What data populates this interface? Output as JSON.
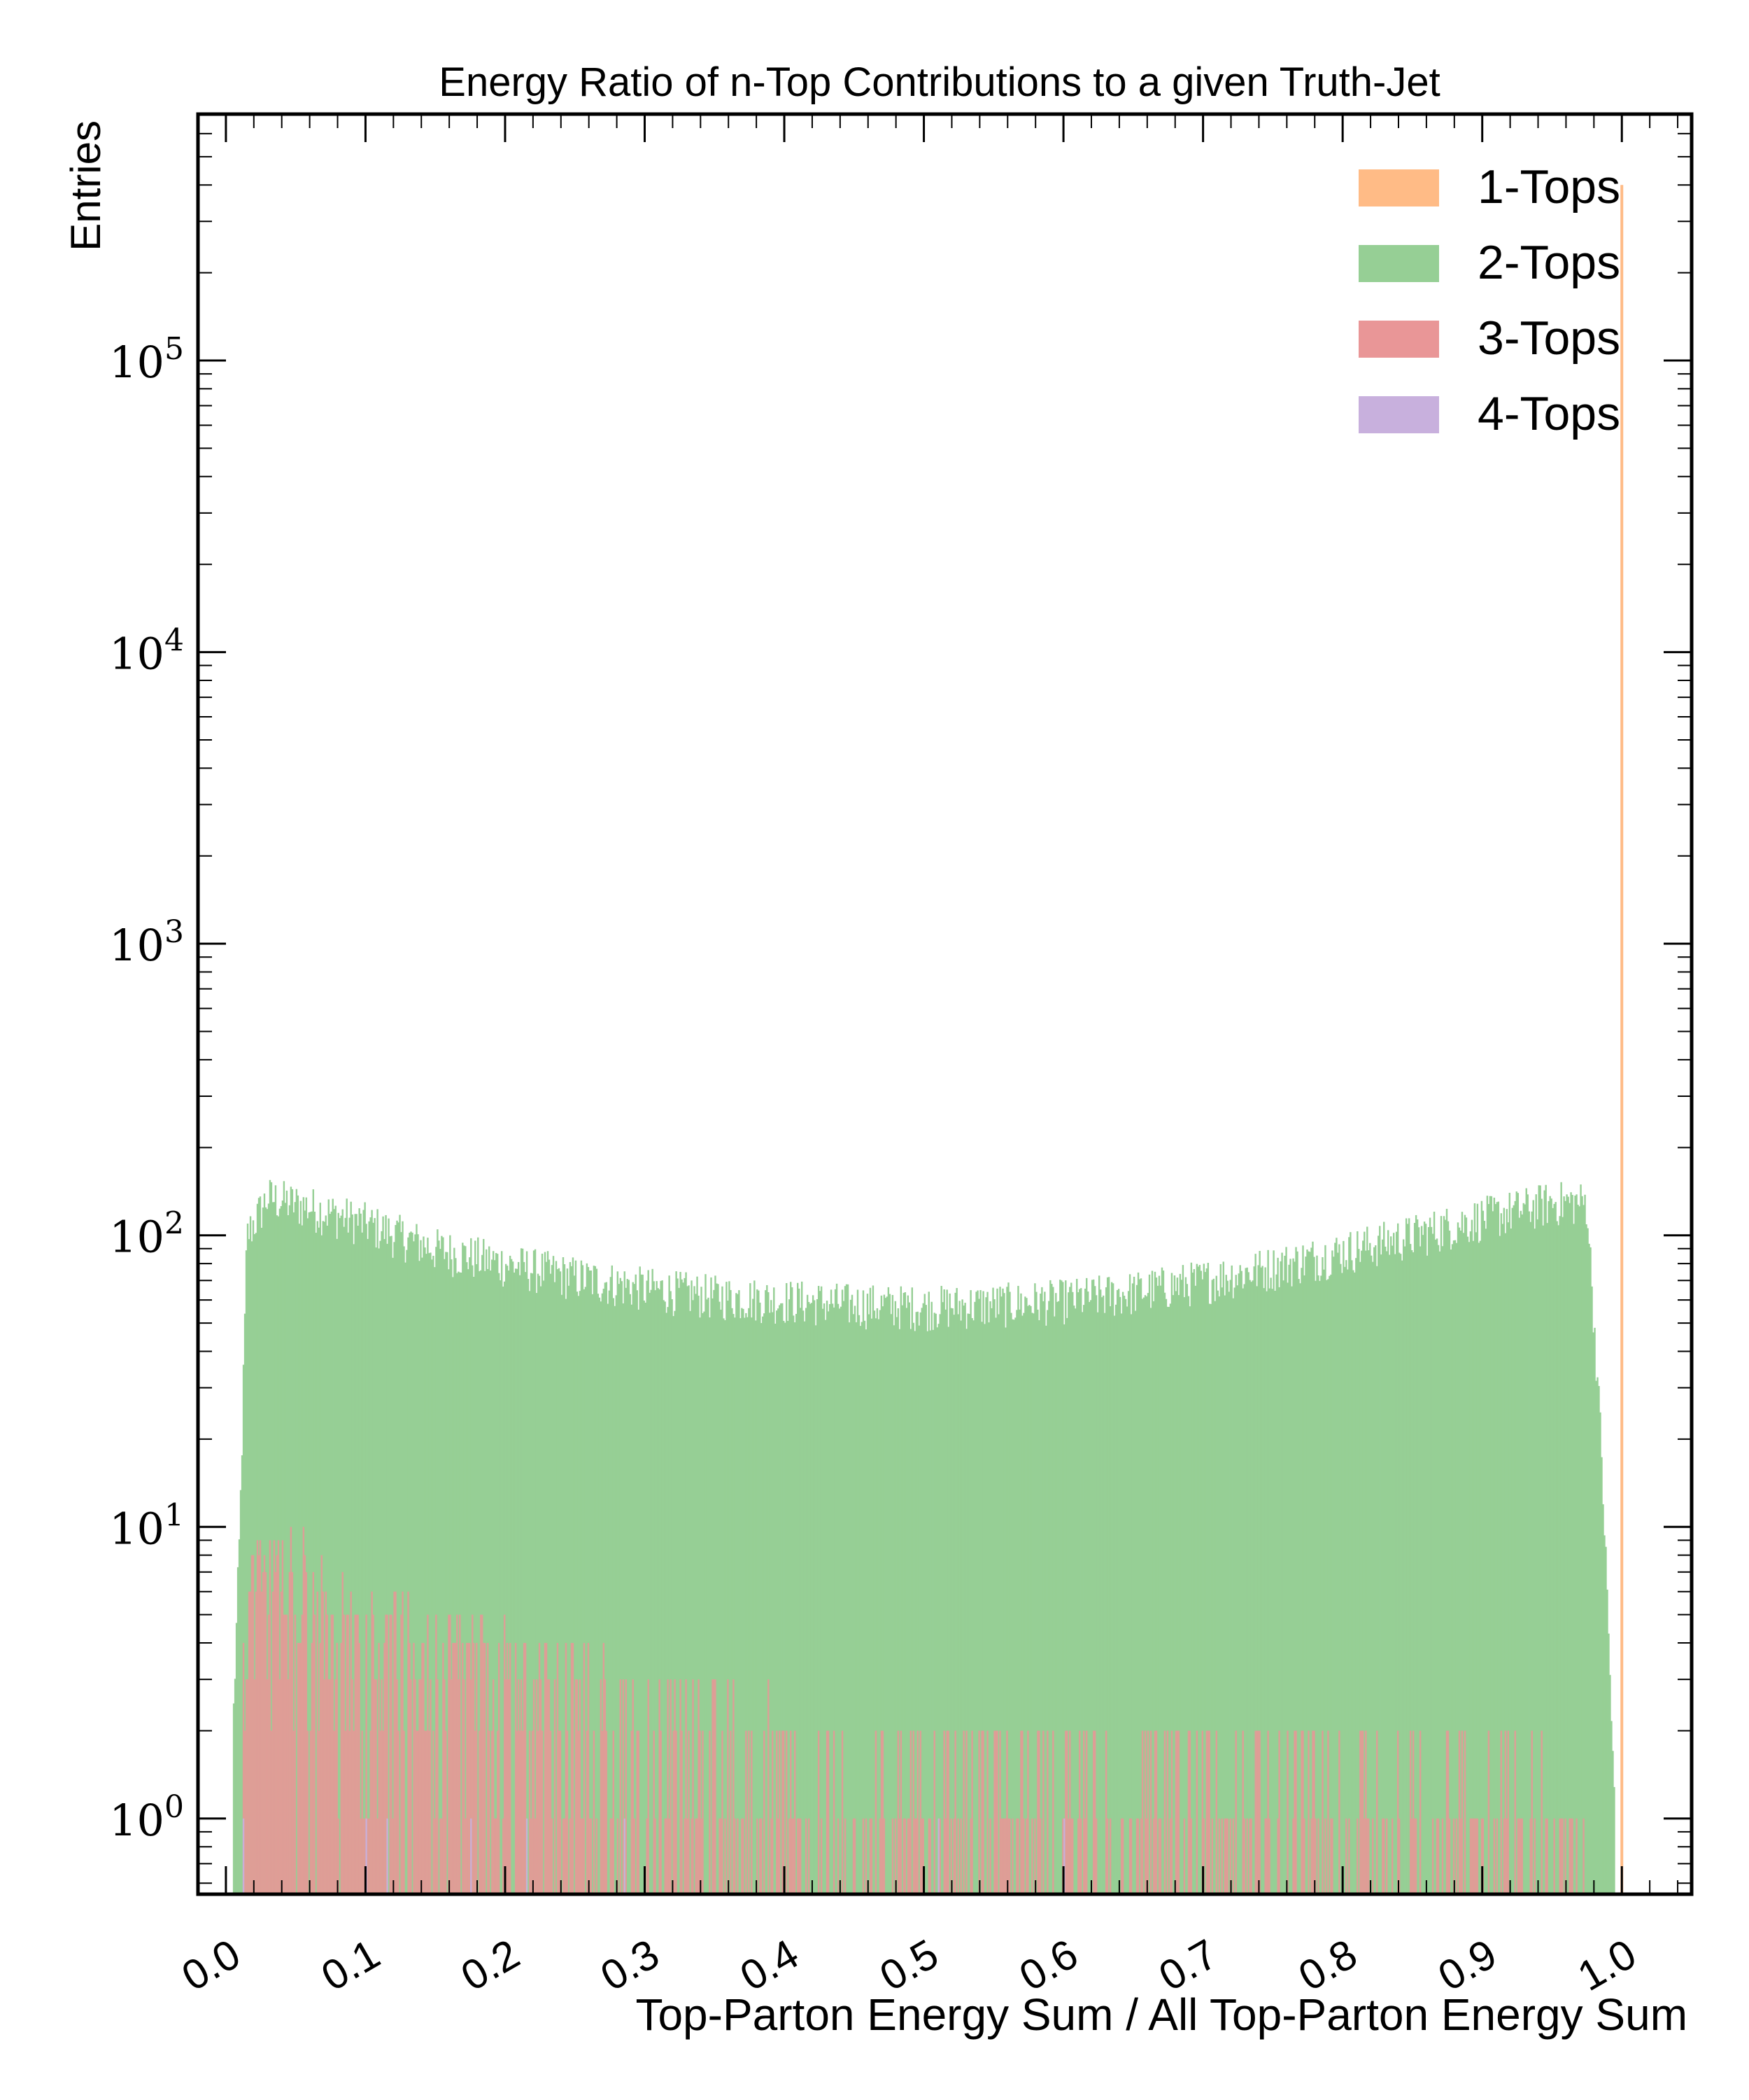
{
  "chart_data": {
    "type": "histogram",
    "title": "Energy Ratio of n-Top Contributions to a given Truth-Jet",
    "xlabel": "Top-Parton Energy Sum / All Top-Parton Energy Sum",
    "ylabel": "Entries",
    "xlim": [
      -0.02,
      1.05
    ],
    "ylim": [
      0.55,
      700000
    ],
    "yscale": "log",
    "grid": false,
    "legend_position": "top-right",
    "x_ticks": [
      0.0,
      0.1,
      0.2,
      0.3,
      0.4,
      0.5,
      0.6,
      0.7,
      0.8,
      0.9,
      1.0
    ],
    "x_tick_labels": [
      "0.0",
      "0.1",
      "0.2",
      "0.3",
      "0.4",
      "0.5",
      "0.6",
      "0.7",
      "0.8",
      "0.9",
      "1.0"
    ],
    "y_ticks": [
      1,
      10,
      100,
      1000,
      10000,
      100000
    ],
    "y_tick_exponents": [
      "0",
      "1",
      "2",
      "3",
      "4",
      "5"
    ],
    "y_tick_base": "10",
    "bin_width": 0.001,
    "series": [
      {
        "name": "1-Tops",
        "color": "#ffbb86",
        "note": "single spike at x = 1.0",
        "profile": [
          [
            0.999,
            0.55
          ],
          [
            1.0,
            400000
          ],
          [
            1.001,
            0.55
          ]
        ]
      },
      {
        "name": "2-Tops",
        "color": "#96cf95",
        "profile": [
          [
            0.005,
            2
          ],
          [
            0.01,
            10
          ],
          [
            0.015,
            100
          ],
          [
            0.03,
            135
          ],
          [
            0.06,
            125
          ],
          [
            0.1,
            110
          ],
          [
            0.15,
            90
          ],
          [
            0.2,
            80
          ],
          [
            0.25,
            72
          ],
          [
            0.3,
            66
          ],
          [
            0.35,
            62
          ],
          [
            0.4,
            60
          ],
          [
            0.45,
            58
          ],
          [
            0.5,
            57
          ],
          [
            0.55,
            58
          ],
          [
            0.6,
            60
          ],
          [
            0.65,
            64
          ],
          [
            0.7,
            70
          ],
          [
            0.75,
            78
          ],
          [
            0.8,
            88
          ],
          [
            0.85,
            100
          ],
          [
            0.9,
            115
          ],
          [
            0.95,
            130
          ],
          [
            0.975,
            130
          ],
          [
            0.985,
            20
          ],
          [
            0.99,
            5
          ],
          [
            0.995,
            1
          ]
        ]
      },
      {
        "name": "3-Tops",
        "color": "#e99697",
        "profile": [
          [
            0.005,
            1
          ],
          [
            0.015,
            6
          ],
          [
            0.03,
            6
          ],
          [
            0.06,
            5
          ],
          [
            0.1,
            4
          ],
          [
            0.2,
            3
          ],
          [
            0.3,
            2.2
          ],
          [
            0.4,
            1.6
          ],
          [
            0.5,
            1.4
          ],
          [
            0.6,
            1.4
          ],
          [
            0.7,
            1.5
          ],
          [
            0.8,
            1.4
          ],
          [
            0.9,
            1.2
          ],
          [
            0.96,
            1
          ],
          [
            0.98,
            0.55
          ]
        ]
      },
      {
        "name": "4-Tops",
        "color": "#c8b0dd",
        "note": "sparse single-entry bins",
        "points": [
          [
            0.012,
            1
          ],
          [
            0.1,
            1
          ],
          [
            0.115,
            1
          ],
          [
            0.175,
            1
          ],
          [
            0.215,
            1
          ],
          [
            0.285,
            1
          ],
          [
            0.51,
            1
          ],
          [
            0.6,
            1
          ]
        ]
      }
    ]
  }
}
